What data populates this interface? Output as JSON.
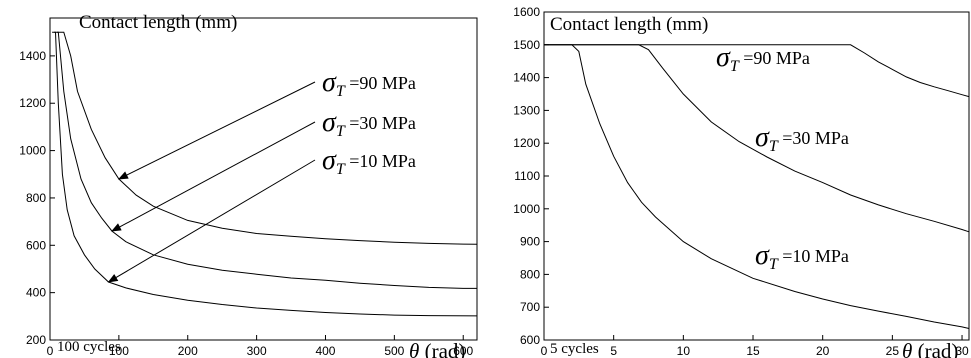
{
  "chart_data": [
    {
      "type": "line",
      "title": "Contact length (mm)",
      "xlabel_symbol": "θ",
      "xlabel_unit": " (rad)",
      "annotation": "100 cycles",
      "xlim": [
        0,
        620
      ],
      "ylim": [
        200,
        1560
      ],
      "xticks": [
        0,
        100,
        200,
        300,
        400,
        500,
        600
      ],
      "yticks": [
        200,
        400,
        600,
        800,
        1000,
        1200,
        1400
      ],
      "series": [
        {
          "label": {
            "symbol": "σ",
            "sub": "T",
            "text": " =90 MPa"
          },
          "arrow_to": [
            100,
            880
          ],
          "points": [
            [
              10,
              1500
            ],
            [
              20,
              1500
            ],
            [
              30,
              1400
            ],
            [
              40,
              1250
            ],
            [
              60,
              1090
            ],
            [
              80,
              970
            ],
            [
              100,
              880
            ],
            [
              125,
              812
            ],
            [
              150,
              765
            ],
            [
              200,
              705
            ],
            [
              250,
              672
            ],
            [
              300,
              650
            ],
            [
              350,
              638
            ],
            [
              400,
              628
            ],
            [
              450,
              620
            ],
            [
              500,
              613
            ],
            [
              550,
              608
            ],
            [
              600,
              605
            ],
            [
              620,
              604
            ]
          ]
        },
        {
          "label": {
            "symbol": "σ",
            "sub": "T",
            "text": " =30 MPa"
          },
          "arrow_to": [
            90,
            660
          ],
          "points": [
            [
              6,
              1500
            ],
            [
              12,
              1500
            ],
            [
              20,
              1250
            ],
            [
              30,
              1050
            ],
            [
              45,
              880
            ],
            [
              60,
              780
            ],
            [
              75,
              715
            ],
            [
              90,
              660
            ],
            [
              110,
              615
            ],
            [
              150,
              560
            ],
            [
              200,
              520
            ],
            [
              250,
              495
            ],
            [
              300,
              478
            ],
            [
              350,
              462
            ],
            [
              400,
              452
            ],
            [
              450,
              440
            ],
            [
              500,
              430
            ],
            [
              550,
              422
            ],
            [
              600,
              418
            ],
            [
              620,
              418
            ]
          ]
        },
        {
          "label": {
            "symbol": "σ",
            "sub": "T",
            "text": " =10 MPa"
          },
          "arrow_to": [
            85,
            445
          ],
          "points": [
            [
              3,
              1500
            ],
            [
              8,
              1500
            ],
            [
              12,
              1200
            ],
            [
              18,
              900
            ],
            [
              25,
              750
            ],
            [
              35,
              640
            ],
            [
              50,
              560
            ],
            [
              65,
              500
            ],
            [
              85,
              445
            ],
            [
              110,
              420
            ],
            [
              150,
              392
            ],
            [
              200,
              368
            ],
            [
              250,
              350
            ],
            [
              300,
              335
            ],
            [
              350,
              325
            ],
            [
              400,
              316
            ],
            [
              450,
              310
            ],
            [
              500,
              305
            ],
            [
              550,
              303
            ],
            [
              620,
              302
            ]
          ]
        }
      ]
    },
    {
      "type": "line",
      "title": "Contact length (mm)",
      "xlabel_symbol": "θ",
      "xlabel_unit": " (rad)",
      "annotation": "5 cycles",
      "xlim": [
        0,
        30.5
      ],
      "ylim": [
        600,
        1600
      ],
      "xticks": [
        0,
        5,
        10,
        15,
        20,
        25,
        30
      ],
      "yticks": [
        600,
        700,
        800,
        900,
        1000,
        1100,
        1200,
        1300,
        1400,
        1500,
        1600
      ],
      "series": [
        {
          "label": {
            "symbol": "σ",
            "sub": "T",
            "text": " =90 MPa"
          },
          "points": [
            [
              0,
              1500
            ],
            [
              22,
              1500
            ],
            [
              23,
              1475
            ],
            [
              24,
              1448
            ],
            [
              25,
              1425
            ],
            [
              26,
              1402
            ],
            [
              27,
              1385
            ],
            [
              28,
              1372
            ],
            [
              29,
              1360
            ],
            [
              30,
              1348
            ],
            [
              30.5,
              1342
            ]
          ]
        },
        {
          "label": {
            "symbol": "σ",
            "sub": "T",
            "text": " =30 MPa"
          },
          "points": [
            [
              0,
              1500
            ],
            [
              6.8,
              1500
            ],
            [
              7.5,
              1485
            ],
            [
              8.5,
              1430
            ],
            [
              10,
              1350
            ],
            [
              12,
              1265
            ],
            [
              14,
              1205
            ],
            [
              16,
              1158
            ],
            [
              18,
              1115
            ],
            [
              20,
              1080
            ],
            [
              22,
              1042
            ],
            [
              24,
              1012
            ],
            [
              26,
              985
            ],
            [
              28,
              962
            ],
            [
              30,
              937
            ],
            [
              30.5,
              930
            ]
          ]
        },
        {
          "label": {
            "symbol": "σ",
            "sub": "T",
            "text": " =10 MPa"
          },
          "points": [
            [
              0,
              1500
            ],
            [
              2,
              1500
            ],
            [
              2.5,
              1480
            ],
            [
              3,
              1380
            ],
            [
              4,
              1260
            ],
            [
              5,
              1160
            ],
            [
              6,
              1080
            ],
            [
              7,
              1020
            ],
            [
              8,
              975
            ],
            [
              10,
              900
            ],
            [
              12,
              848
            ],
            [
              15,
              788
            ],
            [
              18,
              748
            ],
            [
              20,
              725
            ],
            [
              22,
              705
            ],
            [
              24,
              688
            ],
            [
              26,
              672
            ],
            [
              28,
              655
            ],
            [
              30,
              640
            ],
            [
              30.5,
              635
            ]
          ]
        }
      ]
    }
  ]
}
